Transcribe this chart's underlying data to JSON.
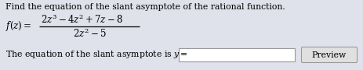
{
  "title_line": "Find the equation of the slant asymptote of the rational function.",
  "func_label": "$f(z) =$",
  "numerator": "$2z^3 - 4z^2 + 7z - 8$",
  "denominator": "$2z^2 - 5$",
  "bottom_line": "The equation of the slant asymptote is $y=$",
  "preview_text": "Preview",
  "bg_color": "#dfe1eb",
  "text_color": "#000000",
  "box_fill": "#ffffff",
  "box_edge": "#999999",
  "preview_fill": "#e0e0e0",
  "preview_edge": "#999999",
  "font_size_title": 7.8,
  "font_size_math": 8.5
}
